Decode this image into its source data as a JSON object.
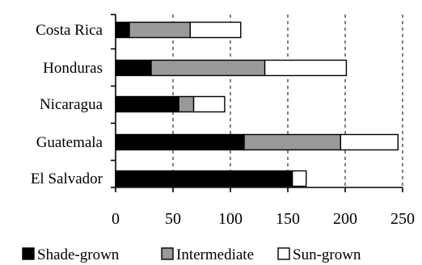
{
  "chart_data": {
    "type": "bar",
    "orientation": "horizontal",
    "stacked": true,
    "title": "",
    "xlabel": "",
    "ylabel": "",
    "categories": [
      "Costa Rica",
      "Honduras",
      "Nicaragua",
      "Guatemala",
      "El Salvador"
    ],
    "series": [
      {
        "name": "Shade-grown",
        "color": "#000000",
        "values": [
          12,
          31,
          55,
          112,
          154
        ]
      },
      {
        "name": "Intermediate",
        "color": "#999999",
        "values": [
          53,
          99,
          13,
          84,
          0
        ]
      },
      {
        "name": "Sun-grown",
        "color": "#ffffff",
        "values": [
          44,
          71,
          27,
          50,
          12
        ]
      }
    ],
    "xlim": [
      0,
      250
    ],
    "xticks": [
      0,
      50,
      100,
      150,
      200,
      250
    ],
    "grid": {
      "vertical": true,
      "style": "dashed"
    },
    "legend": {
      "position": "bottom"
    }
  }
}
